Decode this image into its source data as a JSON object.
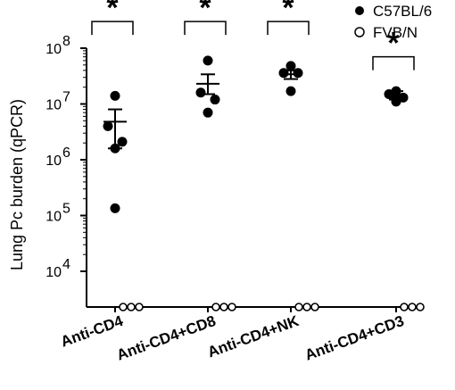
{
  "chart_data": {
    "type": "scatter",
    "ylabel": "Lung Pc burden (qPCR)",
    "y_scale": "log10",
    "ylim": [
      2500,
      100000000
    ],
    "y_ticks": [
      {
        "value": 10000,
        "base": "10",
        "exp": "4"
      },
      {
        "value": 100000,
        "base": "10",
        "exp": "5"
      },
      {
        "value": 1000000,
        "base": "10",
        "exp": "6"
      },
      {
        "value": 10000000,
        "base": "10",
        "exp": "7"
      },
      {
        "value": 100000000,
        "base": "10",
        "exp": "8"
      }
    ],
    "categories": [
      "Anti-CD4",
      "Anti-CD4+CD8",
      "Anti-CD4+NK",
      "Anti-CD4+CD3"
    ],
    "legend_position": "top-right",
    "series": [
      {
        "name": "C57BL/6",
        "marker": "filled-circle",
        "points": [
          [
            14000000,
            4000000,
            2100000,
            1600000,
            135000
          ],
          [
            60000000,
            16000000,
            12000000,
            7000000
          ],
          [
            48000000,
            36000000,
            36000000,
            17000000
          ],
          [
            17000000,
            15000000,
            13000000,
            13000000,
            11000000
          ]
        ],
        "mean": [
          4800000,
          23000000,
          34000000,
          14000000
        ],
        "sem_low": [
          1600000,
          15000000,
          28000000,
          12000000
        ],
        "sem_high": [
          8000000,
          34000000,
          40000000,
          17000000
        ]
      },
      {
        "name": "FVB/N",
        "marker": "open-circle",
        "points": [
          [
            2500,
            2500,
            2500
          ],
          [
            2500,
            2500,
            2500
          ],
          [
            2500,
            2500,
            2500
          ],
          [
            2500,
            2500,
            2500
          ]
        ]
      }
    ],
    "significance": [
      {
        "label": "*",
        "level": 300000000
      },
      {
        "label": "*",
        "level": 300000000
      },
      {
        "label": "*",
        "level": 300000000
      },
      {
        "label": "*",
        "level": 70000000
      }
    ]
  }
}
